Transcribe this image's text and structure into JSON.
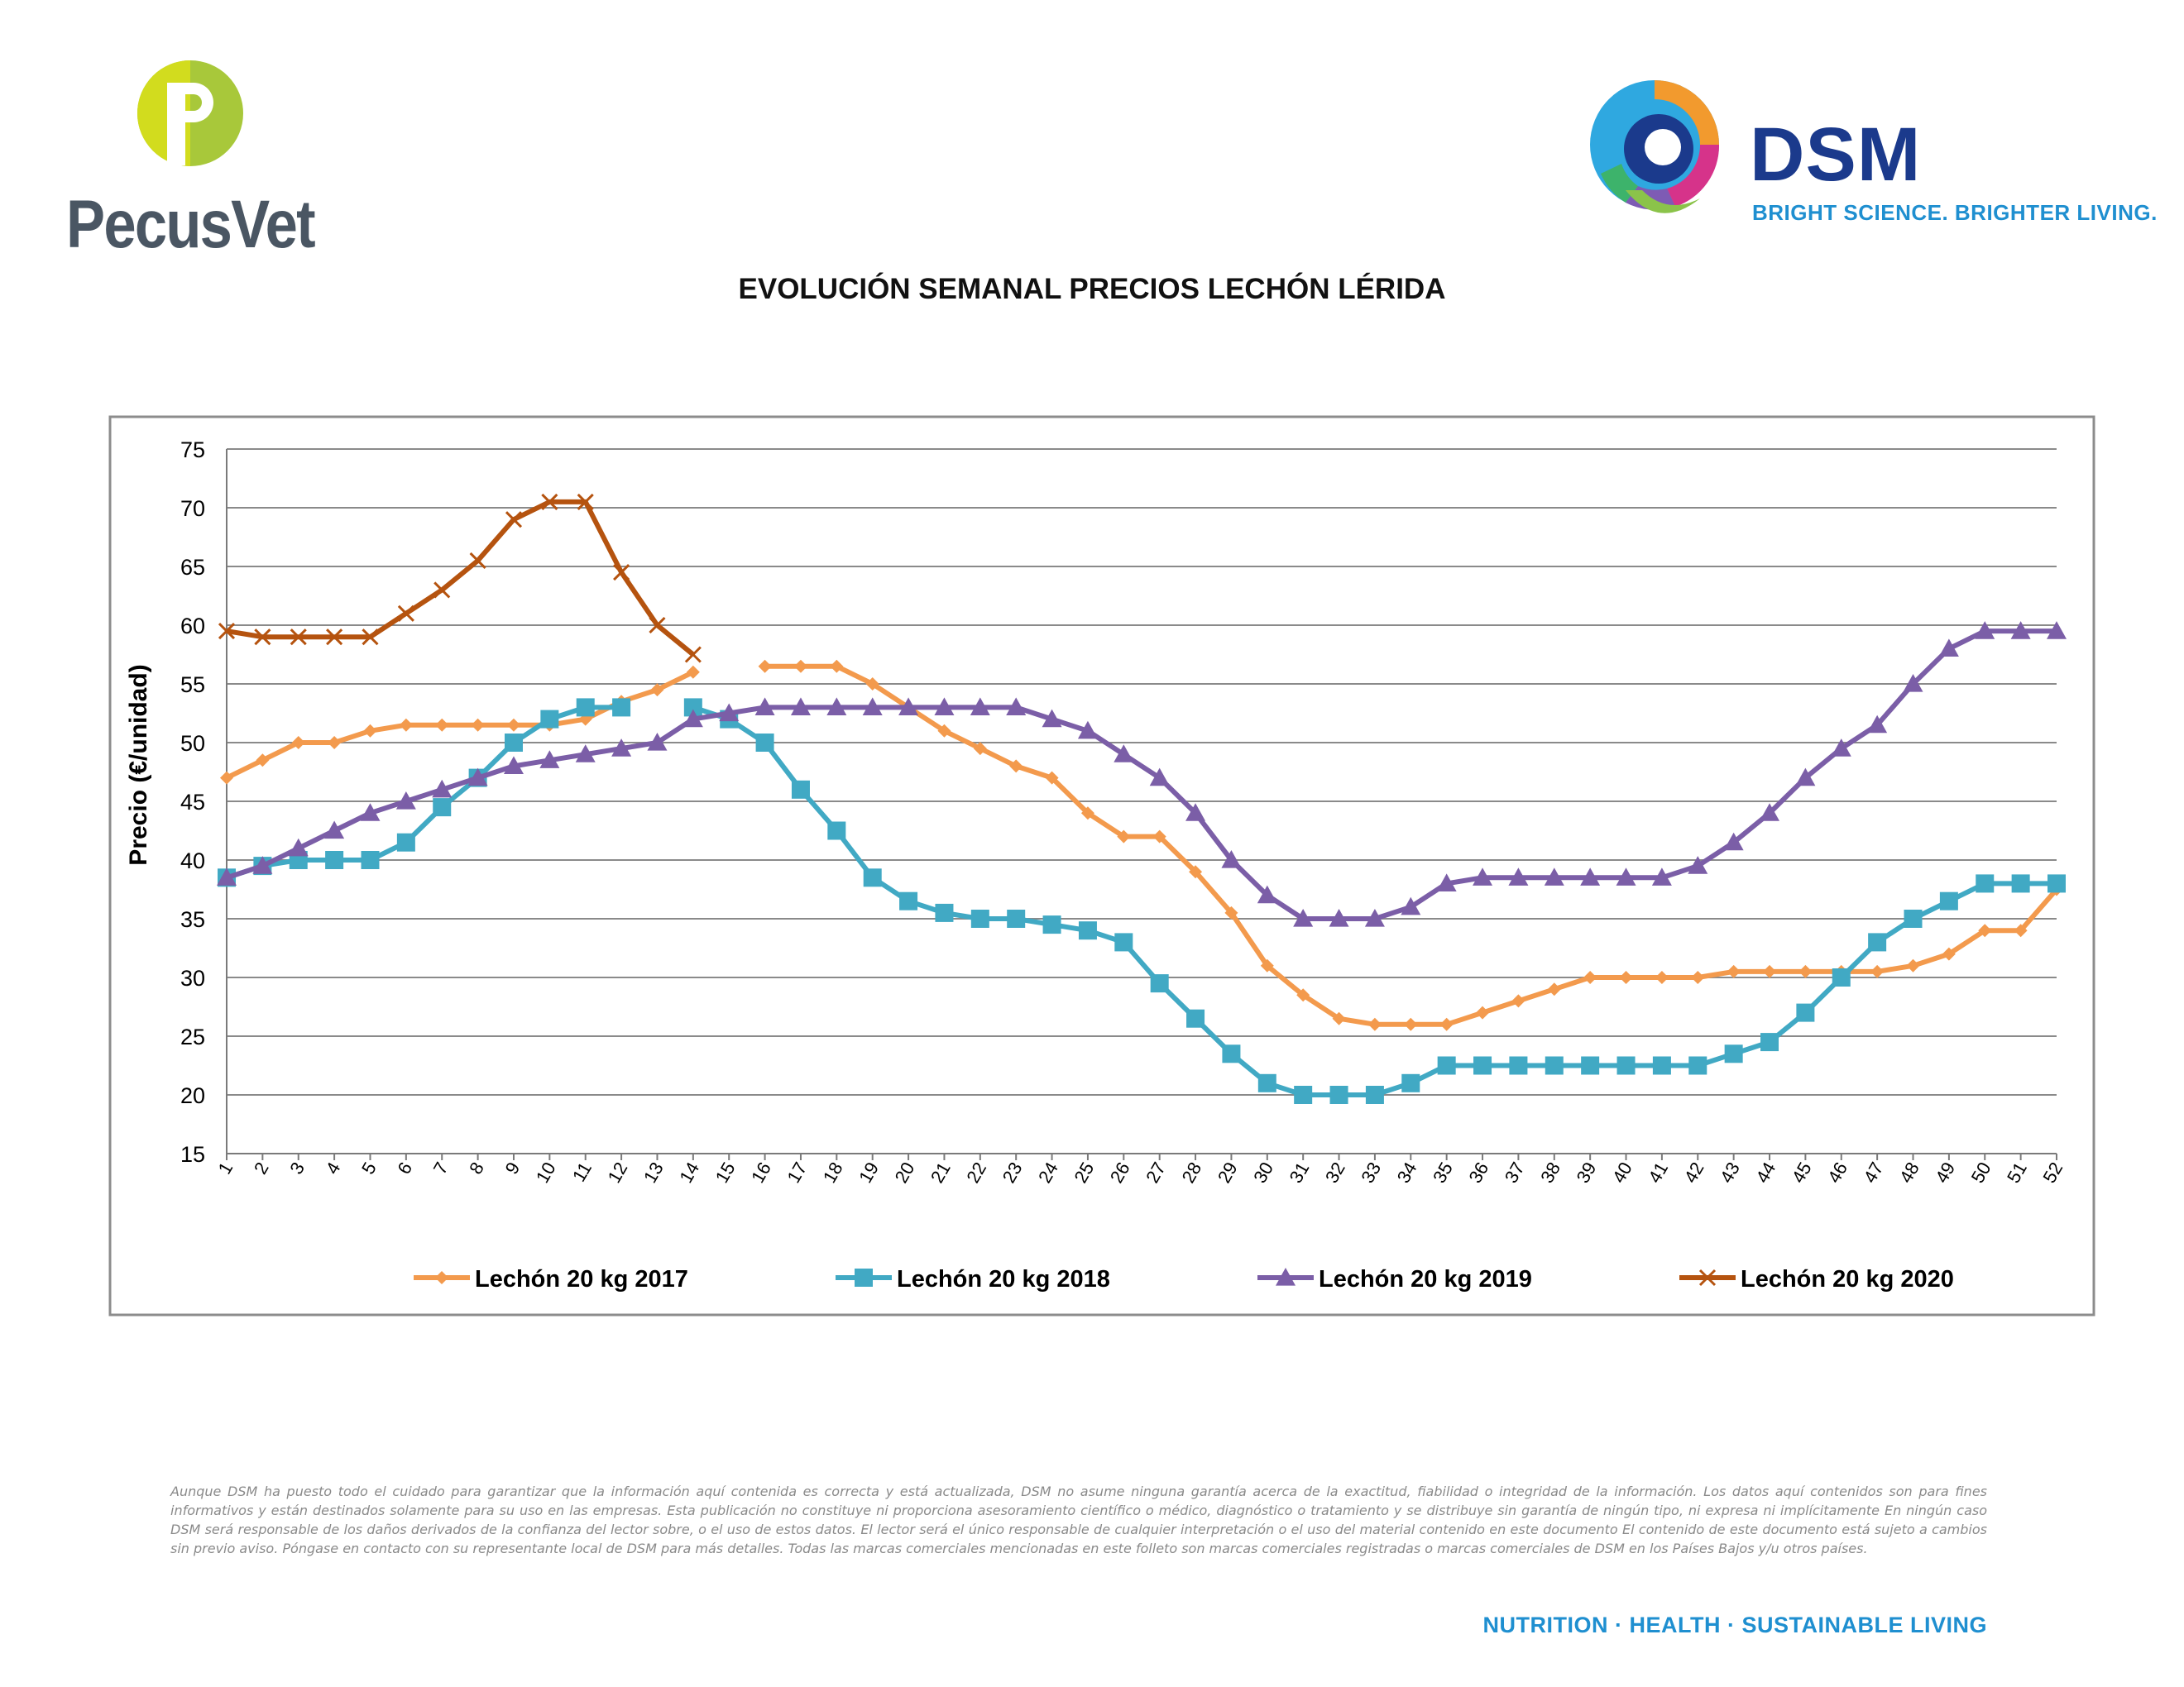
{
  "brand_left": {
    "name": "PecusVet",
    "logo_icon": "pecusvet-p-icon"
  },
  "brand_right": {
    "name": "DSM",
    "tagline": "BRIGHT SCIENCE. BRIGHTER LIVING.",
    "logo_icon": "dsm-swirl-icon"
  },
  "page_title": "EVOLUCIÓN SEMANAL PRECIOS LECHÓN LÉRIDA",
  "chart_data": {
    "type": "line",
    "title": "EVOLUCIÓN SEMANAL PRECIOS LECHÓN LÉRIDA",
    "xlabel": "",
    "ylabel": "Precio (€/unidad)",
    "ylim": [
      15,
      75
    ],
    "yticks": [
      15,
      20,
      25,
      30,
      35,
      40,
      45,
      50,
      55,
      60,
      65,
      70,
      75
    ],
    "grid": true,
    "legend_position": "bottom",
    "x": [
      1,
      2,
      3,
      4,
      5,
      6,
      7,
      8,
      9,
      10,
      11,
      12,
      13,
      14,
      15,
      16,
      17,
      18,
      19,
      20,
      21,
      22,
      23,
      24,
      25,
      26,
      27,
      28,
      29,
      30,
      31,
      32,
      33,
      34,
      35,
      36,
      37,
      38,
      39,
      40,
      41,
      42,
      43,
      44,
      45,
      46,
      47,
      48,
      49,
      50,
      51,
      52
    ],
    "series": [
      {
        "name": "Lechón 20 kg 2017",
        "color": "#f39a4d",
        "marker": "diamond",
        "values": [
          47,
          48.5,
          50,
          50,
          51,
          51.5,
          51.5,
          51.5,
          51.5,
          51.5,
          52,
          53.5,
          54.5,
          56,
          null,
          56.5,
          56.5,
          56.5,
          55,
          53,
          51,
          49.5,
          48,
          47,
          44,
          42,
          42,
          39,
          35.5,
          31,
          28.5,
          26.5,
          26,
          26,
          26,
          27,
          28,
          29,
          30,
          30,
          30,
          30,
          30.5,
          30.5,
          30.5,
          30.5,
          30.5,
          31,
          32,
          34,
          34,
          37.5
        ]
      },
      {
        "name": "Lechón 20 kg 2018",
        "color": "#41a9c4",
        "marker": "square",
        "values": [
          38.5,
          39.5,
          40,
          40,
          40,
          41.5,
          44.5,
          47,
          50,
          52,
          53,
          53,
          null,
          53,
          52,
          50,
          46,
          42.5,
          38.5,
          36.5,
          35.5,
          35,
          35,
          34.5,
          34,
          33,
          29.5,
          26.5,
          23.5,
          21,
          20,
          20,
          20,
          21,
          22.5,
          22.5,
          22.5,
          22.5,
          22.5,
          22.5,
          22.5,
          22.5,
          23.5,
          24.5,
          27,
          30,
          33,
          35,
          36.5,
          38,
          38,
          38
        ]
      },
      {
        "name": "Lechón 20 kg 2019",
        "color": "#7b5ea7",
        "marker": "triangle",
        "values": [
          38.5,
          39.5,
          41,
          42.5,
          44,
          45,
          46,
          47,
          48,
          48.5,
          49,
          49.5,
          50,
          52,
          52.5,
          53,
          53,
          53,
          53,
          53,
          53,
          53,
          53,
          52,
          51,
          49,
          47,
          44,
          40,
          37,
          35,
          35,
          35,
          36,
          38,
          38.5,
          38.5,
          38.5,
          38.5,
          38.5,
          38.5,
          39.5,
          41.5,
          44,
          47,
          49.5,
          51.5,
          55,
          58,
          59.5,
          59.5,
          59.5
        ]
      },
      {
        "name": "Lechón 20 kg 2020",
        "color": "#b5530f",
        "marker": "x",
        "values": [
          59.5,
          59,
          59,
          59,
          59,
          61,
          63,
          65.5,
          69,
          70.5,
          70.5,
          64.5,
          60,
          57.5,
          null,
          null,
          null,
          null,
          null,
          null,
          null,
          null,
          null,
          null,
          null,
          null,
          null,
          null,
          null,
          null,
          null,
          null,
          null,
          null,
          null,
          null,
          null,
          null,
          null,
          null,
          null,
          null,
          null,
          null,
          null,
          null,
          null,
          null,
          null,
          null,
          null,
          null
        ]
      }
    ]
  },
  "disclaimer": "Aunque DSM ha puesto todo el cuidado para garantizar que la información aquí contenida es correcta y está actualizada, DSM no asume ninguna garantía acerca de la exactitud, fiabilidad o integridad de la información. Los datos aquí contenidos son para fines informativos y están destinados solamente para su uso en las empresas. Esta publicación no constituye ni proporciona asesoramiento científico o médico, diagnóstico o tratamiento y se distribuye sin garantía de ningún tipo, ni expresa ni implícitamente En ningún caso DSM será responsable de los daños derivados de la confianza del lector sobre, o el uso de estos datos. El lector será el único responsable de cualquier interpretación o el uso del material contenido en este documento El contenido de este documento está sujeto a cambios sin previo aviso. Póngase en contacto con su representante local de DSM para más detalles. Todas las marcas comerciales mencionadas en este folleto son marcas comerciales registradas o marcas comerciales de DSM en los Países Bajos y/u otros países.",
  "footer_tagline": "NUTRITION · HEALTH · SUSTAINABLE LIVING"
}
